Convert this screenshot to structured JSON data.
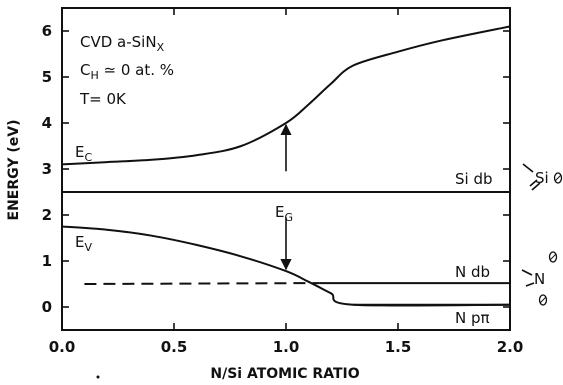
{
  "chart_data": {
    "type": "line",
    "xlabel": "N/Si ATOMIC RATIO",
    "ylabel": "ENERGY (eV)",
    "xlim": [
      0.0,
      2.0
    ],
    "ylim": [
      -0.5,
      6.5
    ],
    "x_ticks": [
      "0.0",
      "0.5",
      "1.0",
      "1.5",
      "2.0"
    ],
    "y_ticks": [
      "0",
      "1",
      "2",
      "3",
      "4",
      "5",
      "6"
    ],
    "annotation": {
      "line1": "CVD a-SiN",
      "line1_sub": "X",
      "line2": "C",
      "line2_sub": "H",
      "line2_rest": " ≃ 0 at. %",
      "line3": "T= 0K"
    },
    "series": [
      {
        "name": "E",
        "name_sub": "C",
        "x": [
          0.0,
          0.2,
          0.4,
          0.6,
          0.8,
          1.0,
          1.1,
          1.2,
          1.3,
          1.5,
          1.7,
          2.0
        ],
        "y": [
          3.1,
          3.15,
          3.2,
          3.3,
          3.5,
          4.0,
          4.4,
          4.85,
          5.25,
          5.55,
          5.8,
          6.1
        ],
        "style": "solid"
      },
      {
        "name": "E",
        "name_sub": "V",
        "x": [
          0.0,
          0.2,
          0.4,
          0.6,
          0.8,
          1.0,
          1.1,
          1.2,
          1.3,
          2.0
        ],
        "y": [
          1.75,
          1.68,
          1.55,
          1.35,
          1.1,
          0.78,
          0.55,
          0.3,
          0.05,
          0.05
        ],
        "style": "solid"
      },
      {
        "name": "Si db",
        "x": [
          0.0,
          2.0
        ],
        "y": [
          2.5,
          2.5
        ],
        "style": "solid"
      },
      {
        "name": "N db",
        "x": [
          0.1,
          1.15,
          2.0
        ],
        "y": [
          0.5,
          0.52,
          0.52
        ],
        "style": "dashed-then-solid"
      },
      {
        "name": "N pπ",
        "x": [
          1.3,
          2.0
        ],
        "y": [
          0.05,
          0.05
        ],
        "style": "solid"
      }
    ],
    "gap_label": "E",
    "gap_label_sub": "G",
    "gap_arrow_x": 1.0,
    "gap_arrow_y_top": 4.0,
    "gap_arrow_y_bottom": 0.78,
    "right_labels": {
      "si": "Si",
      "n": "N"
    }
  }
}
